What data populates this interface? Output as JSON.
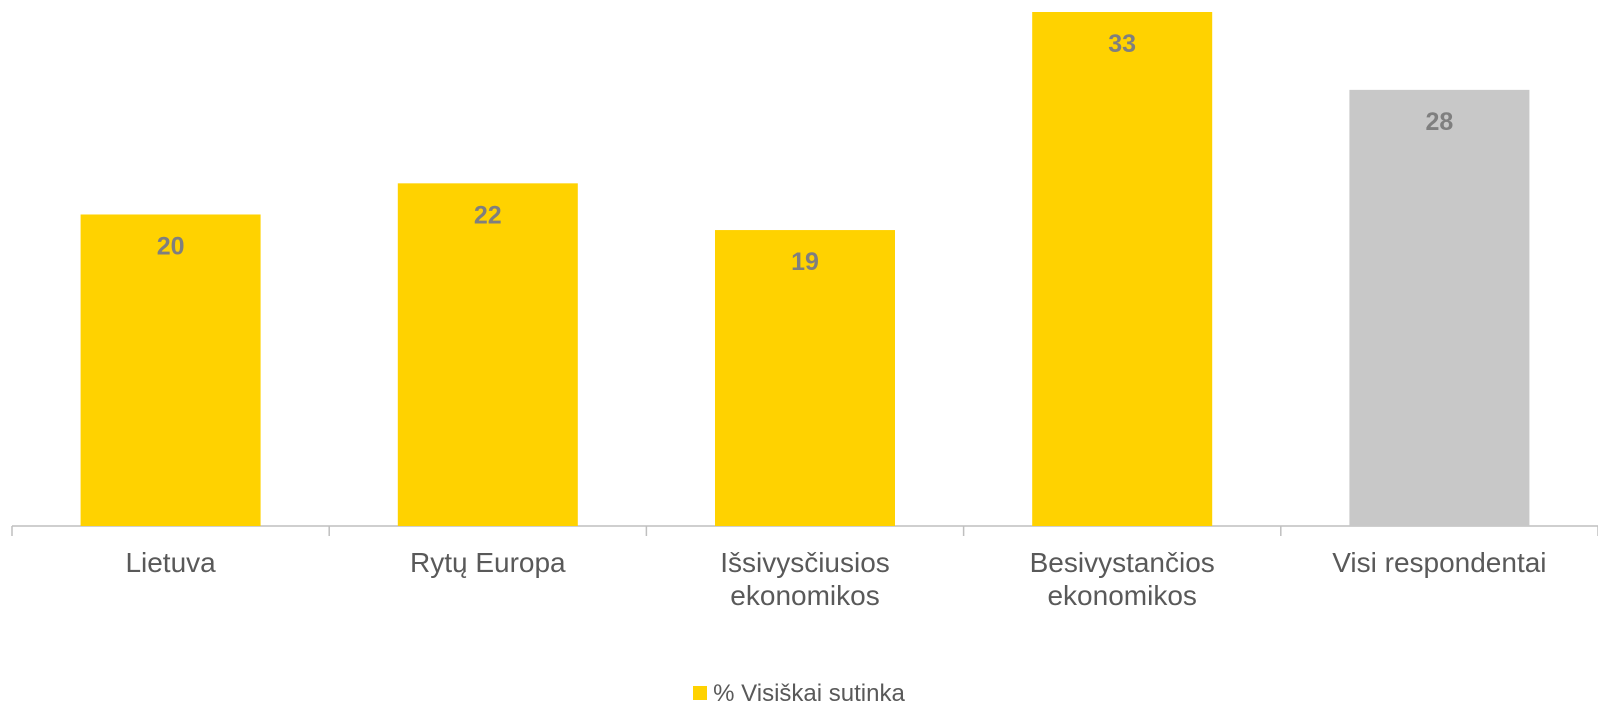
{
  "chart_data": {
    "type": "bar",
    "categories": [
      "Lietuva",
      "Rytų Europa",
      "Išsivysčiusios ekonomikos",
      "Besivystančios ekonomikos",
      "Visi respondentai"
    ],
    "series": [
      {
        "name": "% Visiškai sutinka",
        "color": "#FFD200",
        "values": [
          20,
          22,
          19,
          33,
          28
        ]
      }
    ],
    "point_colors": [
      "#FFD200",
      "#FFD200",
      "#FFD200",
      "#FFD200",
      "#C8C8C8"
    ],
    "legend": "bottom",
    "grid": false
  }
}
